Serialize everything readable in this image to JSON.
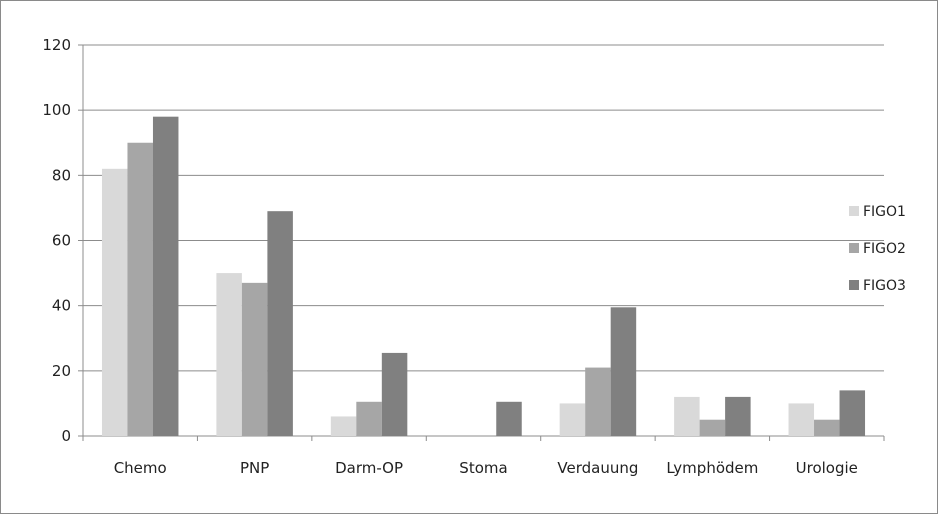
{
  "chart_data": {
    "type": "bar",
    "title": "",
    "xlabel": "",
    "ylabel": "",
    "categories": [
      "Chemo",
      "PNP",
      "Darm-OP",
      "Stoma",
      "Verdauung",
      "Lymphödem",
      "Urologie"
    ],
    "series": [
      {
        "name": "FIGO1",
        "color": "#d9d9d9",
        "values": [
          82,
          50,
          6,
          0,
          10,
          12,
          10
        ]
      },
      {
        "name": "FIGO2",
        "color": "#a6a6a6",
        "values": [
          90,
          47,
          10.5,
          0,
          21,
          5,
          5
        ]
      },
      {
        "name": "FIGO3",
        "color": "#808080",
        "values": [
          98,
          69,
          25.5,
          10.5,
          39.5,
          12,
          14
        ]
      }
    ],
    "ylim": [
      0,
      120
    ],
    "yticks": [
      0,
      20,
      40,
      60,
      80,
      100,
      120
    ],
    "grid": true,
    "legend_position": "right"
  }
}
